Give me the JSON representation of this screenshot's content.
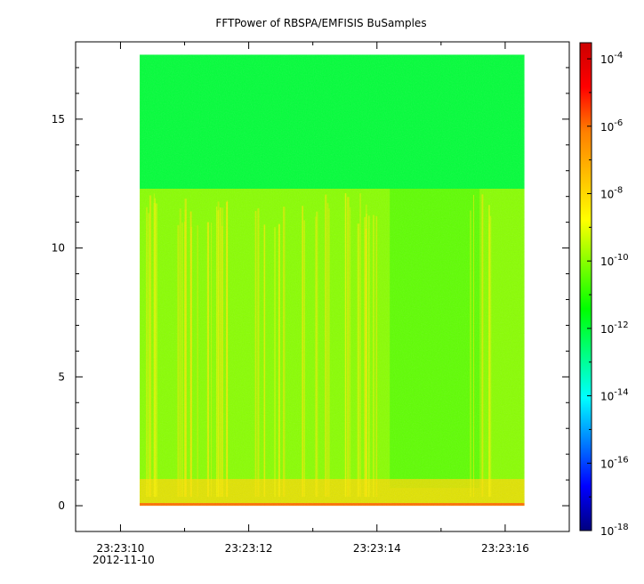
{
  "chart_data": {
    "type": "heatmap",
    "title": "FFTPower of RBSPA/EMFISIS  BuSamples",
    "xlabel": "",
    "ylabel": "",
    "x_axis": {
      "range": [
        "23:23:09.3",
        "23:23:17.0"
      ],
      "ticks": [
        {
          "value": "23:23:10",
          "label": "23:23:10"
        },
        {
          "value": "23:23:12",
          "label": "23:23:12"
        },
        {
          "value": "23:23:14",
          "label": "23:23:14"
        },
        {
          "value": "23:23:16",
          "label": "23:23:16"
        }
      ],
      "date_label": "2012-11-10"
    },
    "y_axis": {
      "range": [
        -1,
        18
      ],
      "ticks": [
        0,
        5,
        10,
        15
      ],
      "tick_labels": [
        "0",
        "5",
        "10",
        "15"
      ]
    },
    "data_extent": {
      "x_start": "23:23:10.3",
      "x_end": "23:23:16.3",
      "y_start": 0,
      "y_end": 17.5
    },
    "colorbar": {
      "scale": "log",
      "range": [
        1e-18,
        0.0003
      ],
      "tick_exponents": [
        -4,
        -6,
        -8,
        -10,
        -12,
        -14,
        -16,
        -18
      ],
      "colormap": [
        "#00007f",
        "#0000ff",
        "#007fff",
        "#00ffff",
        "#00ff7f",
        "#00ff00",
        "#7fff00",
        "#ffff00",
        "#ffbf00",
        "#ff7f00",
        "#ff0000",
        "#cc0000"
      ]
    },
    "features": {
      "upper_band_level": 1e-12,
      "lower_band_level": 1e-10,
      "band_boundary_y": 12.3,
      "quiet_interval": [
        "23:23:14.2",
        "23:23:15.6"
      ],
      "low_frequency_level": 1e-08
    },
    "grid": false,
    "legend": "colorbar-right"
  }
}
